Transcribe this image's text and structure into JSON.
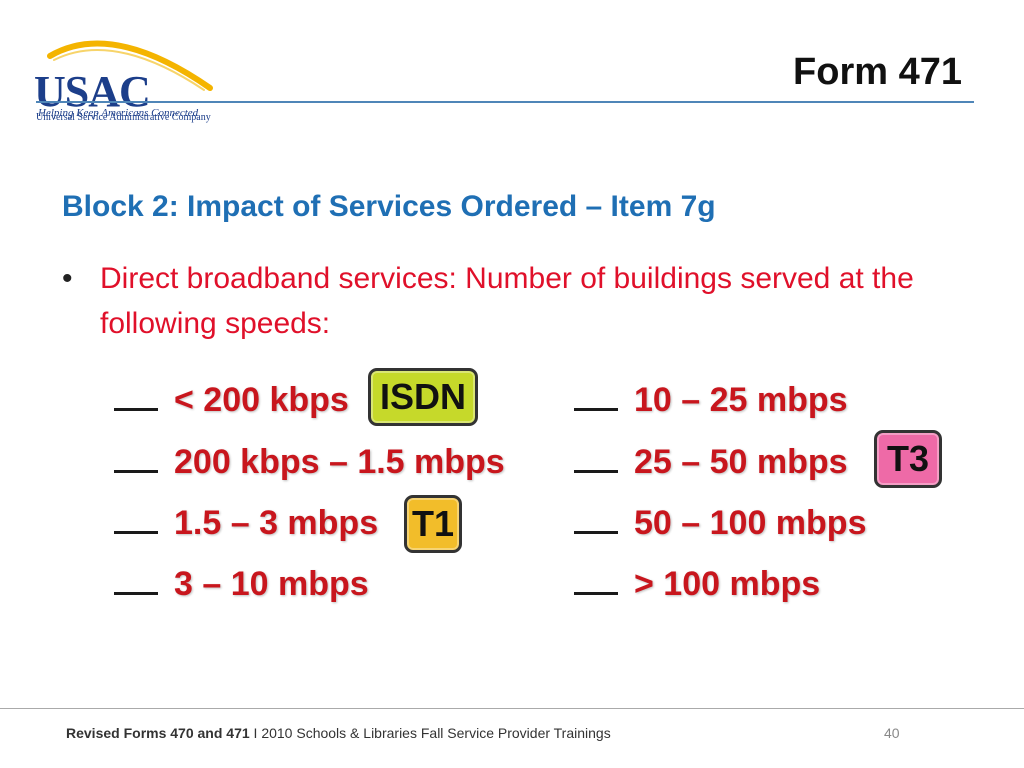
{
  "header": {
    "logo": {
      "name": "USAC",
      "subtitle": "Universal Service Administrative Company",
      "tagline": "Helping Keep Americans Connected"
    },
    "form_title": "Form 471"
  },
  "block_title": "Block 2: Impact of Services Ordered – Item 7g",
  "bullet": {
    "marker": "•",
    "text": "Direct broadband services: Number of buildings served at the following speeds:"
  },
  "speeds": {
    "left": [
      {
        "blank": "__",
        "label": "< 200 kbps"
      },
      {
        "blank": "__",
        "label": "200 kbps – 1.5 mbps"
      },
      {
        "blank": "__",
        "label": "1.5 – 3 mbps"
      },
      {
        "blank": "__",
        "label": "3 – 10 mbps"
      }
    ],
    "right": [
      {
        "blank": "__",
        "label": "10 – 25 mbps"
      },
      {
        "blank": "__",
        "label": "25 – 50 mbps"
      },
      {
        "blank": "__",
        "label": "50 – 100 mbps"
      },
      {
        "blank": "__",
        "label": "> 100 mbps"
      }
    ]
  },
  "badges": {
    "isdn": {
      "label": "ISDN",
      "color": "#c6d92a"
    },
    "t1": {
      "label": "T1",
      "color": "#f2bd2a"
    },
    "t3": {
      "label": "T3",
      "color": "#ee6aa7"
    }
  },
  "footer": {
    "bold_text": "Revised Forms 470 and 471",
    "text": " I 2010 Schools & Libraries Fall Service Provider Trainings",
    "page_number": "40"
  }
}
